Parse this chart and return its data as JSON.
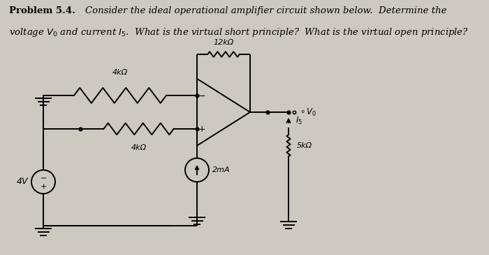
{
  "bg_color": "#cdc8c0",
  "line_color": "#000000",
  "resistor_4k_top_label": "4kΩ",
  "resistor_4k_bot_label": "4kΩ",
  "resistor_12k_label": "12kΩ",
  "resistor_5k_label": "5kΩ",
  "voltage_source_label": "4V",
  "current_source_label": "2mA",
  "vo_label": "V_0",
  "i5_label": "I_5",
  "title_bold": "Problem 5.4.",
  "title_italic": " Consider the ideal operational amplifier circuit shown below.  Determine the",
  "title_line2": "voltage V₀ and current I₅.  What is the virtual short principle?  What is the virtual open principle?"
}
